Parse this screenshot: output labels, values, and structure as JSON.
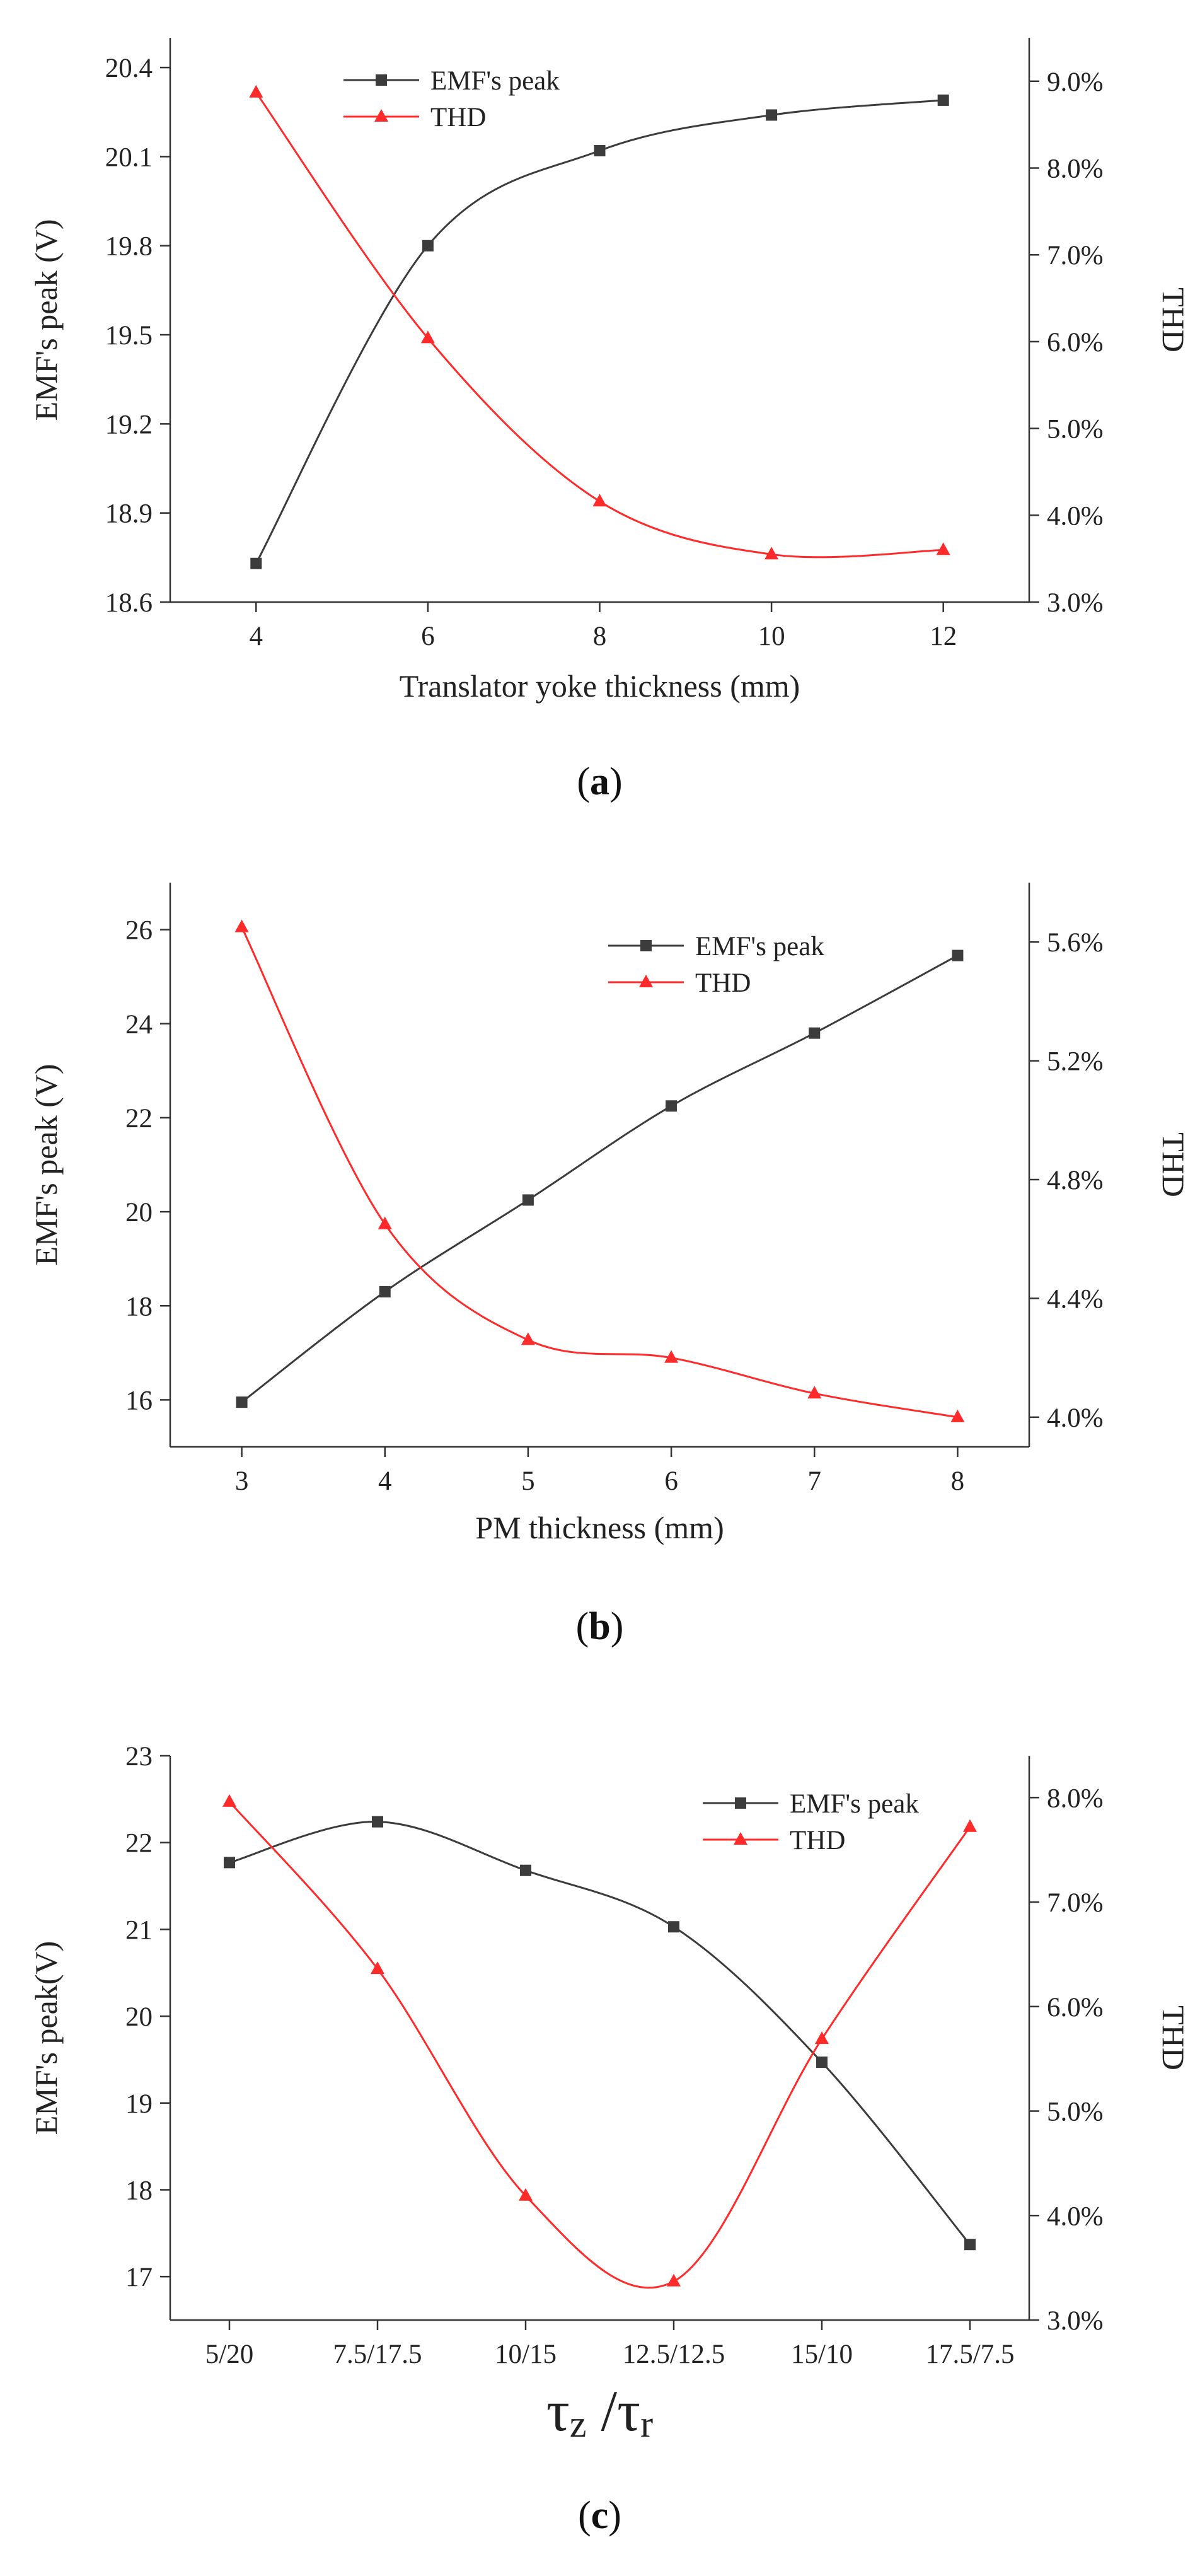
{
  "figure": {
    "colors": {
      "emf": "#3c3c3c",
      "thd": "#ff2a2a",
      "axis": "#333333"
    }
  },
  "chart_data": [
    {
      "type": "line",
      "panel_label": "a",
      "xlabel": "Translator yoke thickness (mm)",
      "ylabel": "EMF's peak (V)",
      "y2label": "THD",
      "x": [
        4,
        6,
        8,
        10,
        12
      ],
      "xlim": [
        3,
        13
      ],
      "xticks": [
        4,
        6,
        8,
        10,
        12
      ],
      "xtick_labels": [
        "4",
        "6",
        "8",
        "10",
        "12"
      ],
      "ylim": [
        18.6,
        20.5
      ],
      "yticks": [
        18.6,
        18.9,
        19.2,
        19.5,
        19.8,
        20.1,
        20.4
      ],
      "ytick_labels": [
        "18.6",
        "18.9",
        "19.2",
        "19.5",
        "19.8",
        "20.1",
        "20.4"
      ],
      "y2lim": [
        3.0,
        9.5
      ],
      "y2ticks": [
        3,
        4,
        5,
        6,
        7,
        8,
        9
      ],
      "y2tick_labels": [
        "3.0%",
        "4.0%",
        "5.0%",
        "6.0%",
        "7.0%",
        "8.0%",
        "9.0%"
      ],
      "legend": [
        "EMF's peak",
        "THD"
      ],
      "legend_position": "top-center",
      "series": [
        {
          "name": "EMF's peak",
          "axis": "left",
          "marker": "square",
          "values": [
            18.73,
            19.8,
            20.12,
            20.24,
            20.29
          ]
        },
        {
          "name": "THD",
          "axis": "right",
          "marker": "triangle",
          "values": [
            8.87,
            6.04,
            4.16,
            3.55,
            3.6
          ]
        }
      ]
    },
    {
      "type": "line",
      "panel_label": "b",
      "xlabel": "PM thickness (mm)",
      "ylabel": "EMF's peak (V)",
      "y2label": "THD",
      "x": [
        3,
        4,
        5,
        6,
        7,
        8
      ],
      "xlim": [
        2.5,
        8.5
      ],
      "xticks": [
        3,
        4,
        5,
        6,
        7,
        8
      ],
      "xtick_labels": [
        "3",
        "4",
        "5",
        "6",
        "7",
        "8"
      ],
      "ylim": [
        15,
        27
      ],
      "yticks": [
        16,
        18,
        20,
        22,
        24,
        26
      ],
      "ytick_labels": [
        "16",
        "18",
        "20",
        "22",
        "24",
        "26"
      ],
      "y2lim": [
        3.9,
        5.8
      ],
      "y2ticks": [
        4.0,
        4.4,
        4.8,
        5.2,
        5.6
      ],
      "y2tick_labels": [
        "4.0%",
        "4.4%",
        "4.8%",
        "5.2%",
        "5.6%"
      ],
      "legend": [
        "EMF's peak",
        "THD"
      ],
      "legend_position": "top-right",
      "series": [
        {
          "name": "EMF's peak",
          "axis": "left",
          "marker": "square",
          "values": [
            15.95,
            18.3,
            20.25,
            22.25,
            23.8,
            25.45
          ]
        },
        {
          "name": "THD",
          "axis": "right",
          "marker": "triangle",
          "values": [
            5.65,
            4.65,
            4.26,
            4.2,
            4.08,
            4.0
          ]
        }
      ]
    },
    {
      "type": "line",
      "panel_label": "c",
      "xlabel": "τz /τr",
      "xlabel_parts": {
        "tau1": "τ",
        "sub1": "z",
        "sep": " /",
        "tau2": "τ",
        "sub2": "r"
      },
      "ylabel": "EMF's peak(V)",
      "y2label": "THD",
      "x": [
        "5/20",
        "7.5/17.5",
        "10/15",
        "12.5/12.5",
        "15/10",
        "17.5/7.5"
      ],
      "xlim": [
        -0.4,
        5.4
      ],
      "xticks": [
        0,
        1,
        2,
        3,
        4,
        5
      ],
      "xtick_labels": [
        "5/20",
        "7.5/17.5",
        "10/15",
        "12.5/12.5",
        "15/10",
        "17.5/7.5"
      ],
      "ylim": [
        16.5,
        23
      ],
      "yticks": [
        17,
        18,
        19,
        20,
        21,
        22,
        23
      ],
      "ytick_labels": [
        "17",
        "18",
        "19",
        "20",
        "21",
        "22",
        "23"
      ],
      "y2lim": [
        3.0,
        8.4
      ],
      "y2ticks": [
        3,
        4,
        5,
        6,
        7,
        8
      ],
      "y2tick_labels": [
        "3.0%",
        "4.0%",
        "5.0%",
        "6.0%",
        "7.0%",
        "8.0%"
      ],
      "legend": [
        "EMF's peak",
        "THD"
      ],
      "legend_position": "top-right",
      "series": [
        {
          "name": "EMF's peak",
          "axis": "left",
          "marker": "square",
          "values": [
            21.77,
            22.24,
            21.68,
            21.03,
            19.47,
            17.37
          ]
        },
        {
          "name": "THD",
          "axis": "right",
          "marker": "triangle",
          "values": [
            7.96,
            6.36,
            4.19,
            3.37,
            5.69,
            7.72
          ]
        }
      ]
    }
  ]
}
